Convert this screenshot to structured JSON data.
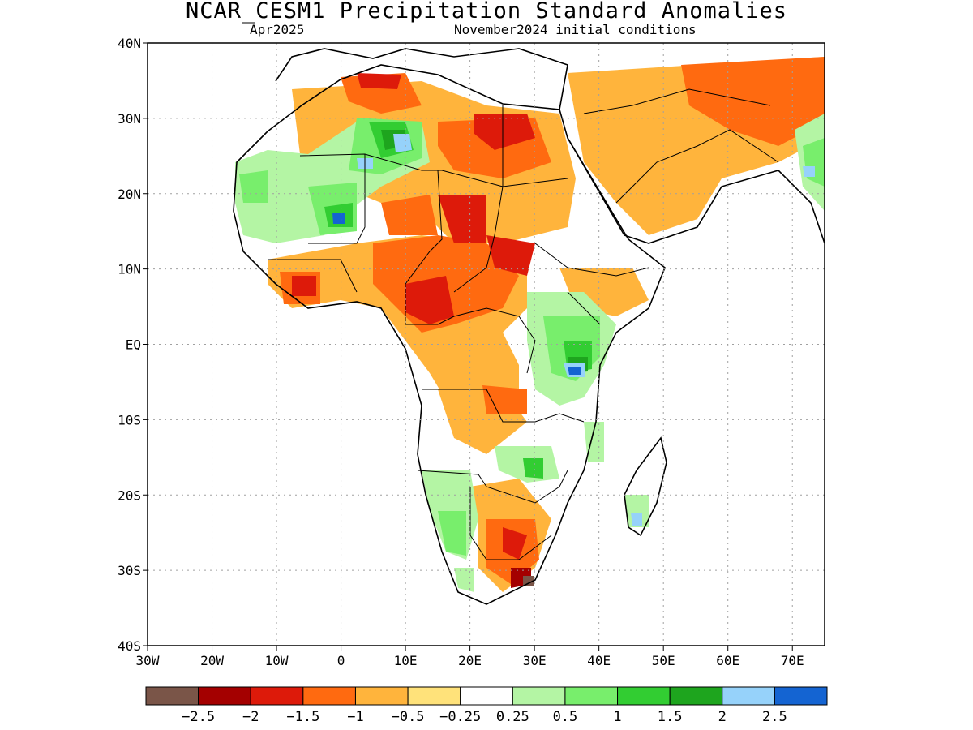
{
  "title": "NCAR_CESM1 Precipitation Standard Anomalies",
  "subtitle_left": "Apr2025",
  "subtitle_right": "November2024 initial conditions",
  "map": {
    "lon_range": [
      -30,
      75
    ],
    "lat_range": [
      -40,
      40
    ],
    "lat_labels": [
      "40N",
      "30N",
      "20N",
      "10N",
      "EQ",
      "10S",
      "20S",
      "30S",
      "40S"
    ],
    "lat_values": [
      40,
      30,
      20,
      10,
      0,
      -10,
      -20,
      -30,
      -40
    ],
    "lon_labels": [
      "30W",
      "20W",
      "10W",
      "0",
      "10E",
      "20E",
      "30E",
      "40E",
      "50E",
      "60E",
      "70E"
    ],
    "lon_values": [
      -30,
      -20,
      -10,
      0,
      10,
      20,
      30,
      40,
      50,
      60,
      70
    ],
    "gridlines": true
  },
  "legend": {
    "colors": [
      "#7a5548",
      "#a40000",
      "#dd1a0a",
      "#ff6a10",
      "#ffb43c",
      "#ffe27a",
      "#ffffff",
      "#b4f5a4",
      "#78ee6c",
      "#32cd32",
      "#1ea51e",
      "#96d2fa",
      "#1464d2"
    ],
    "labels": [
      "−2.5",
      "−2",
      "−1.5",
      "−1",
      "−0.5",
      "−0.25",
      "0.25",
      "0.5",
      "1",
      "1.5",
      "2",
      "2.5"
    ]
  }
}
